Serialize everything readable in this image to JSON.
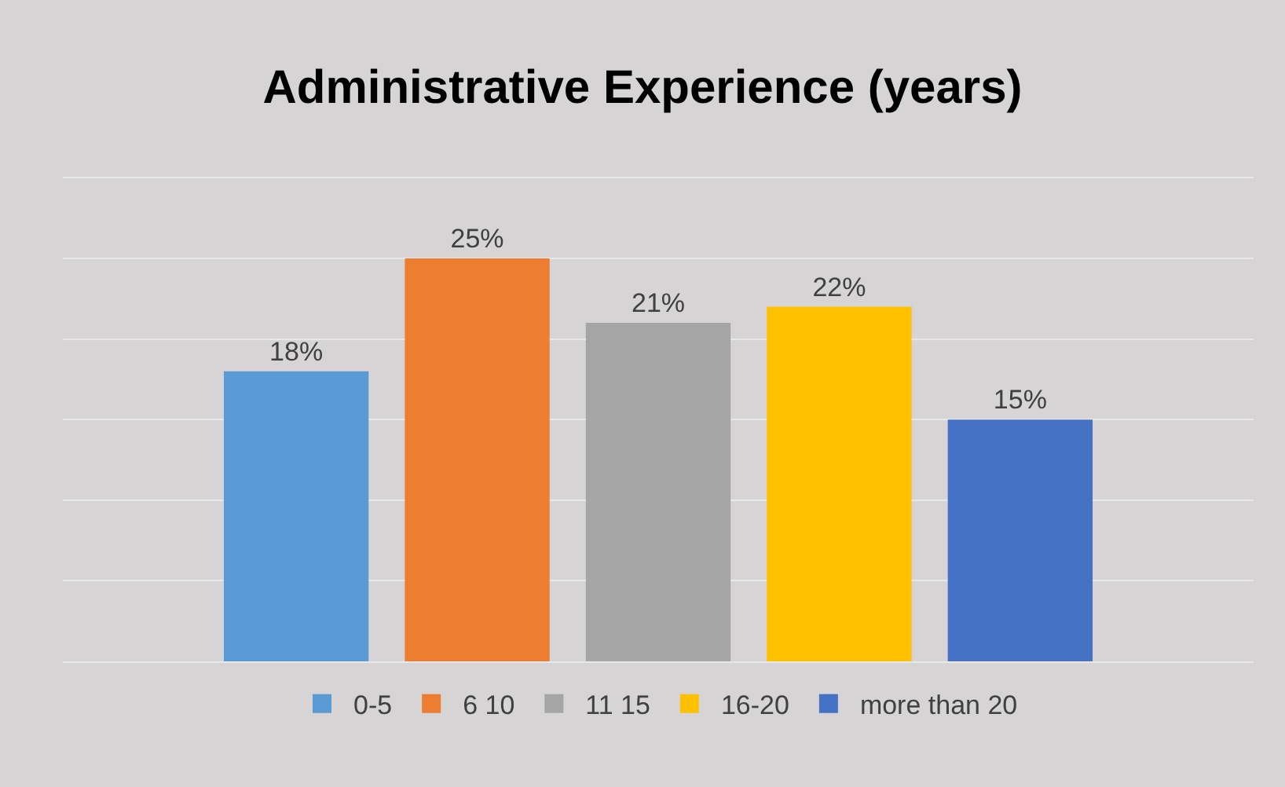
{
  "chart_data": {
    "type": "bar",
    "title": "Administrative Experience (years)",
    "categories": [
      null
    ],
    "series": [
      {
        "name": "0-5",
        "color": "#5b9bd5",
        "values": [
          18
        ],
        "value_labels": [
          "18%"
        ]
      },
      {
        "name": "6 10",
        "color": "#ed7d31",
        "values": [
          25
        ],
        "value_labels": [
          "25%"
        ]
      },
      {
        "name": "11 15",
        "color": "#a5a5a5",
        "values": [
          21
        ],
        "value_labels": [
          "21%"
        ]
      },
      {
        "name": "16-20",
        "color": "#ffc000",
        "values": [
          22
        ],
        "value_labels": [
          "22%"
        ]
      },
      {
        "name": "more than 20",
        "color": "#4472c4",
        "values": [
          15
        ],
        "value_labels": [
          "15%"
        ]
      }
    ],
    "ylim": [
      0,
      30
    ],
    "yticks": [
      {
        "value": 0,
        "label": null
      },
      {
        "value": 5,
        "label": null
      },
      {
        "value": 10,
        "label": null
      },
      {
        "value": 15,
        "label": null
      },
      {
        "value": 20,
        "label": null
      },
      {
        "value": 25,
        "label": null
      },
      {
        "value": 30,
        "label": null
      }
    ],
    "grid": "y",
    "legend": "bottom"
  }
}
